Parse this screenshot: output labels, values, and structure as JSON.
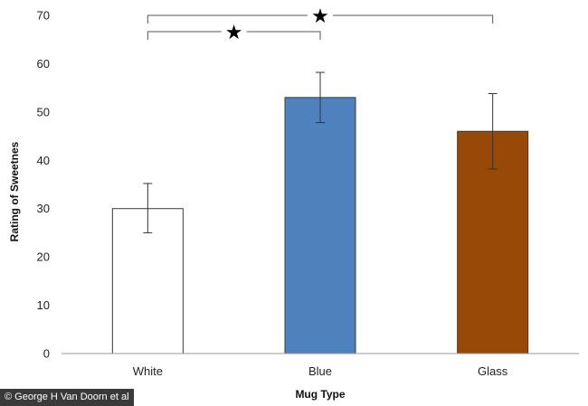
{
  "chart_data": {
    "type": "bar",
    "xlabel": "Mug Type",
    "ylabel": "Rating of Sweetnes",
    "ylim": [
      0,
      70
    ],
    "yticks": [
      0,
      10,
      20,
      30,
      40,
      50,
      60,
      70
    ],
    "grid": false,
    "categories": [
      "White",
      "Blue",
      "Glass"
    ],
    "values": [
      30,
      53,
      46
    ],
    "error_low": [
      25,
      47.8,
      38.2
    ],
    "error_high": [
      35.2,
      58.2,
      53.8
    ],
    "colors": [
      "#ffffff",
      "#4f81bd",
      "#984807"
    ],
    "significance": [
      {
        "from": "White",
        "to": "Blue",
        "symbol": "★"
      },
      {
        "from": "White",
        "to": "Glass",
        "symbol": "★"
      }
    ]
  },
  "credit": "© George H Van Doorn et al"
}
